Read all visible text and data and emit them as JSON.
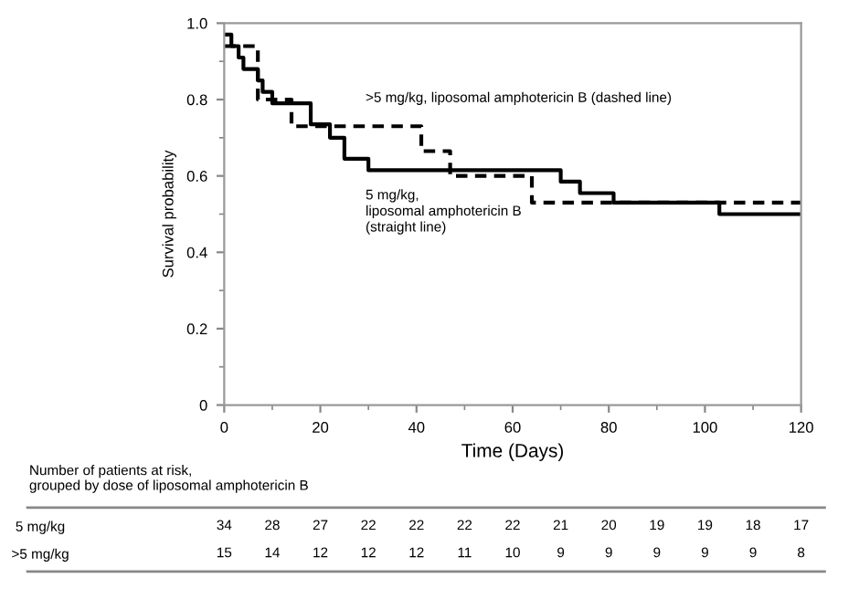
{
  "chart_data": [
    {
      "type": "step",
      "xlabel": "Time (Days)",
      "ylabel": "Survival probability",
      "xlim": [
        0,
        120
      ],
      "xticks": [
        0,
        20,
        40,
        60,
        80,
        100,
        120
      ],
      "ylim": [
        0,
        1.0
      ],
      "yticks": [
        0,
        0.2,
        0.4,
        0.6,
        0.8,
        {
          "value": 1.0,
          "label": "1.0"
        }
      ],
      "grid": false,
      "legend": false,
      "series": [
        {
          "color": "#000000",
          "line_style": "solid",
          "x": [
            0,
            1.5,
            3,
            4,
            7,
            8,
            10,
            18,
            22,
            25,
            30,
            70,
            74,
            81,
            103,
            120
          ],
          "values": [
            0.97,
            0.94,
            0.91,
            0.88,
            0.85,
            0.82,
            0.79,
            0.735,
            0.7,
            0.645,
            0.615,
            0.585,
            0.555,
            0.53,
            0.5,
            0.5
          ]
        },
        {
          "color": "#000000",
          "line_style": "dashed",
          "x": [
            0,
            7,
            14,
            41,
            47,
            64,
            120
          ],
          "values": [
            0.94,
            0.8,
            0.73,
            0.665,
            0.6,
            0.53,
            0.53
          ]
        }
      ],
      "annotations": [
        ">5 mg/kg, liposomal amphotericin B (dashed line)",
        "5 mg/kg,\nliposomal amphotericin B\n(straight line)"
      ]
    },
    {
      "type": "heatmap",
      "title": "Number of patients at risk,\ngrouped by dose of liposomal amphotericin B",
      "data_labels": true,
      "categories": [
        null,
        null,
        null,
        null,
        null,
        null,
        null,
        null,
        null,
        null,
        null,
        null,
        null
      ],
      "y_categories": [
        "5 mg/kg",
        ">5 mg/kg"
      ],
      "cells": [
        [
          34,
          28,
          27,
          22,
          22,
          22,
          22,
          21,
          20,
          19,
          19,
          18,
          17
        ],
        [
          15,
          14,
          12,
          12,
          12,
          11,
          10,
          9,
          9,
          9,
          9,
          9,
          8
        ]
      ]
    }
  ]
}
